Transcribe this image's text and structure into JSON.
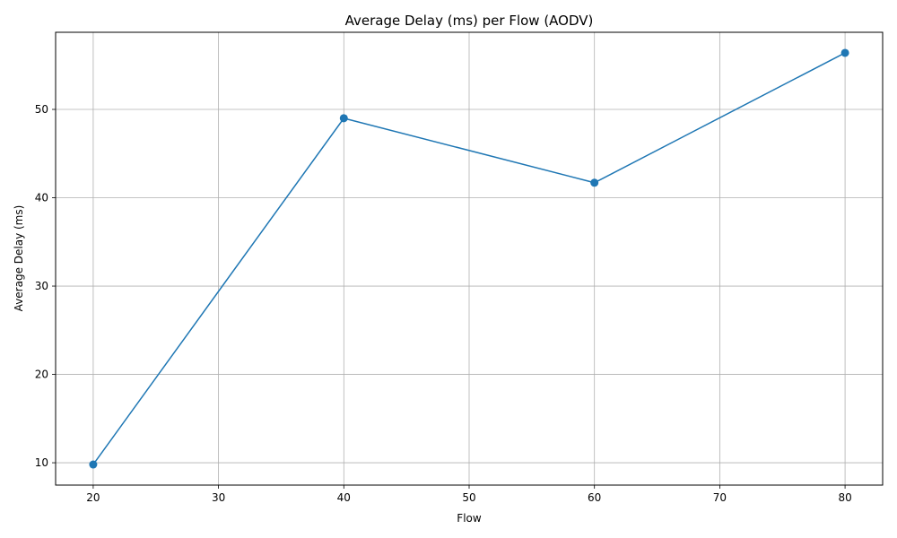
{
  "chart_data": {
    "type": "line",
    "title": "Average Delay (ms) per Flow (AODV)",
    "xlabel": "Flow",
    "ylabel": "Average Delay (ms)",
    "x": [
      20,
      40,
      60,
      80
    ],
    "series": [
      {
        "values": [
          9.8,
          49.0,
          41.7,
          56.4
        ],
        "color": "#1f77b4",
        "marker": "circle"
      }
    ],
    "xlim": [
      17,
      83
    ],
    "ylim": [
      7.47,
      58.73
    ],
    "xticks": [
      20,
      30,
      40,
      50,
      60,
      70,
      80
    ],
    "yticks": [
      10,
      20,
      30,
      40,
      50
    ],
    "grid": true,
    "legend": "none"
  }
}
